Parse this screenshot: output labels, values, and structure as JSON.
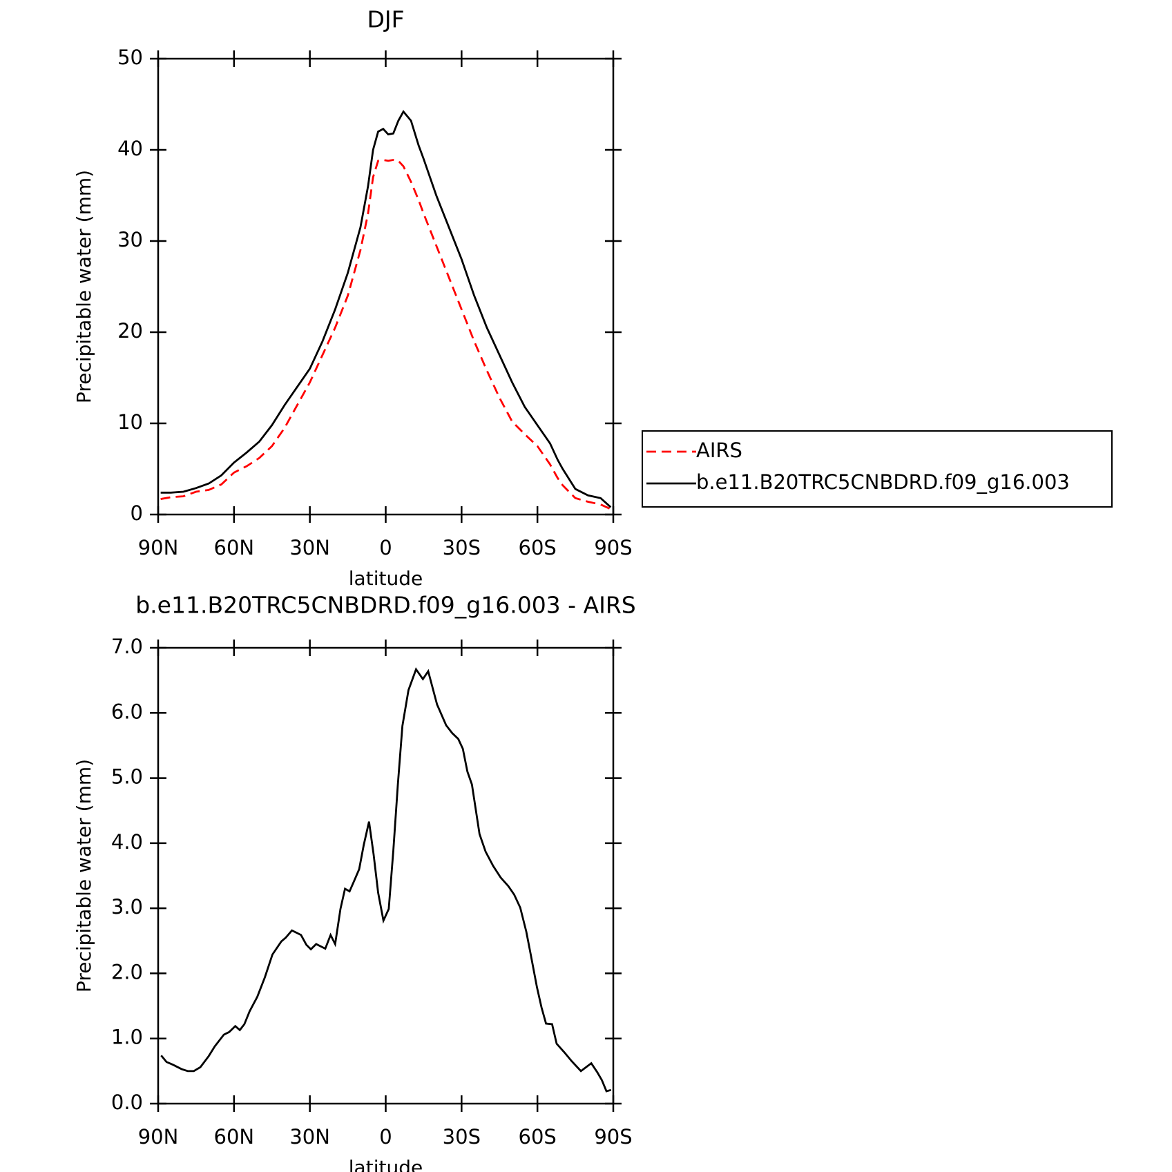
{
  "chart_data": [
    {
      "type": "line",
      "title": "DJF",
      "xlabel": "latitude",
      "ylabel": "Precipitable water (mm)",
      "x": [
        89,
        85,
        80,
        75,
        70,
        65,
        60,
        55,
        50,
        45,
        40,
        35,
        30,
        25,
        20,
        15,
        10,
        7,
        5,
        3,
        1,
        -1,
        -3,
        -5,
        -7,
        -10,
        -13,
        -15,
        -20,
        -25,
        -30,
        -35,
        -40,
        -45,
        -50,
        -55,
        -60,
        -65,
        -68,
        -70,
        -75,
        -80,
        -85,
        -89
      ],
      "xlim": [
        90,
        -90
      ],
      "xticks": [
        {
          "value": 90,
          "label": "90N"
        },
        {
          "value": 60,
          "label": "60N"
        },
        {
          "value": 30,
          "label": "30N"
        },
        0,
        {
          "value": -30,
          "label": "30S"
        },
        {
          "value": -60,
          "label": "60S"
        },
        {
          "value": -90,
          "label": "90S"
        }
      ],
      "ylim": [
        0,
        50
      ],
      "yticks": [
        0,
        10,
        20,
        30,
        40,
        50
      ],
      "legend": "right",
      "series": [
        {
          "name": "AIRS",
          "color": "#ff0000",
          "linestyle": "dashed",
          "values": [
            1.7,
            1.9,
            2.0,
            2.5,
            2.7,
            3.3,
            4.6,
            5.3,
            6.2,
            7.5,
            9.5,
            12,
            14.5,
            17.5,
            20.5,
            24,
            29,
            33,
            37,
            38.8,
            38.9,
            38.8,
            38.9,
            38.8,
            38.2,
            36.5,
            34.5,
            33,
            29.5,
            26,
            22.5,
            19,
            15.8,
            12.8,
            10.2,
            8.8,
            7.5,
            5.5,
            4,
            3.2,
            1.8,
            1.4,
            1.1,
            0.6
          ]
        },
        {
          "name": "b.e11.B20TRC5CNBDRD.f09_g16.003",
          "color": "#000000",
          "linestyle": "solid",
          "values": [
            2.4,
            2.4,
            2.5,
            2.9,
            3.4,
            4.3,
            5.7,
            6.8,
            8.0,
            9.8,
            12,
            14,
            16,
            19,
            22.5,
            26.5,
            31.5,
            36,
            40,
            42,
            42.3,
            41.7,
            41.8,
            43.2,
            44.2,
            43.2,
            40.5,
            39,
            35,
            31.5,
            28,
            24,
            20.5,
            17.5,
            14.5,
            11.8,
            9.8,
            7.8,
            6,
            5,
            2.8,
            2.1,
            1.8,
            0.8
          ]
        }
      ]
    },
    {
      "type": "line",
      "title": "b.e11.B20TRC5CNBDRD.f09_g16.003 - AIRS",
      "xlabel": "latitude",
      "ylabel": "Precipitable water (mm)",
      "x": [
        88.8,
        86.7,
        84.3,
        80.7,
        78.3,
        75.9,
        73.3,
        70,
        67.6,
        64,
        61.9,
        59.5,
        57.7,
        55.9,
        53.8,
        50.8,
        47.8,
        44.8,
        41.3,
        39.5,
        37.1,
        33.5,
        31.4,
        29.6,
        27.5,
        23.9,
        21.8,
        20,
        17.9,
        16.1,
        14.3,
        12.6,
        10.5,
        8.7,
        6.6,
        4.8,
        3,
        0.9,
        -1.2,
        -3,
        -4.8,
        -6.6,
        -9,
        -12,
        -14.7,
        -16.8,
        -20.3,
        -23.9,
        -26.3,
        -28.7,
        -30.5,
        -32.3,
        -34.1,
        -37.1,
        -39.5,
        -42.5,
        -45.5,
        -48.5,
        -50.8,
        -53.2,
        -55.6,
        -57.4,
        -59.8,
        -61.6,
        -63.4,
        -65.8,
        -67.6,
        -70.6,
        -73.6,
        -77.2,
        -79.6,
        -81.3,
        -83.7,
        -85.5,
        -87.3,
        -89.1
      ],
      "xlim": [
        90,
        -90
      ],
      "xticks": [
        {
          "value": 90,
          "label": "90N"
        },
        {
          "value": 60,
          "label": "60N"
        },
        {
          "value": 30,
          "label": "30N"
        },
        0,
        {
          "value": -30,
          "label": "30S"
        },
        {
          "value": -60,
          "label": "60S"
        },
        {
          "value": -90,
          "label": "90S"
        }
      ],
      "ylim": [
        0,
        7
      ],
      "yticks": [
        {
          "value": 0,
          "label": "0.0"
        },
        {
          "value": 1,
          "label": "1.0"
        },
        {
          "value": 2,
          "label": "2.0"
        },
        {
          "value": 3,
          "label": "3.0"
        },
        {
          "value": 4,
          "label": "4.0"
        },
        {
          "value": 5,
          "label": "5.0"
        },
        {
          "value": 6,
          "label": "6.0"
        },
        {
          "value": 7,
          "label": "7.0"
        }
      ],
      "series": [
        {
          "color": "#000000",
          "linestyle": "solid",
          "values": [
            0.74,
            0.64,
            0.6,
            0.53,
            0.5,
            0.5,
            0.56,
            0.73,
            0.88,
            1.06,
            1.1,
            1.19,
            1.13,
            1.22,
            1.42,
            1.64,
            1.94,
            2.29,
            2.49,
            2.55,
            2.66,
            2.59,
            2.44,
            2.37,
            2.45,
            2.38,
            2.59,
            2.45,
            2.99,
            3.3,
            3.26,
            3.41,
            3.6,
            3.97,
            4.33,
            3.83,
            3.24,
            2.81,
            2.99,
            3.88,
            4.9,
            5.8,
            6.35,
            6.67,
            6.52,
            6.64,
            6.13,
            5.81,
            5.69,
            5.6,
            5.45,
            5.1,
            4.9,
            4.14,
            3.87,
            3.65,
            3.47,
            3.34,
            3.21,
            3.01,
            2.64,
            2.28,
            1.79,
            1.48,
            1.23,
            1.22,
            0.92,
            0.79,
            0.65,
            0.5,
            0.57,
            0.62,
            0.48,
            0.36,
            0.19,
            0.21
          ]
        }
      ]
    }
  ]
}
